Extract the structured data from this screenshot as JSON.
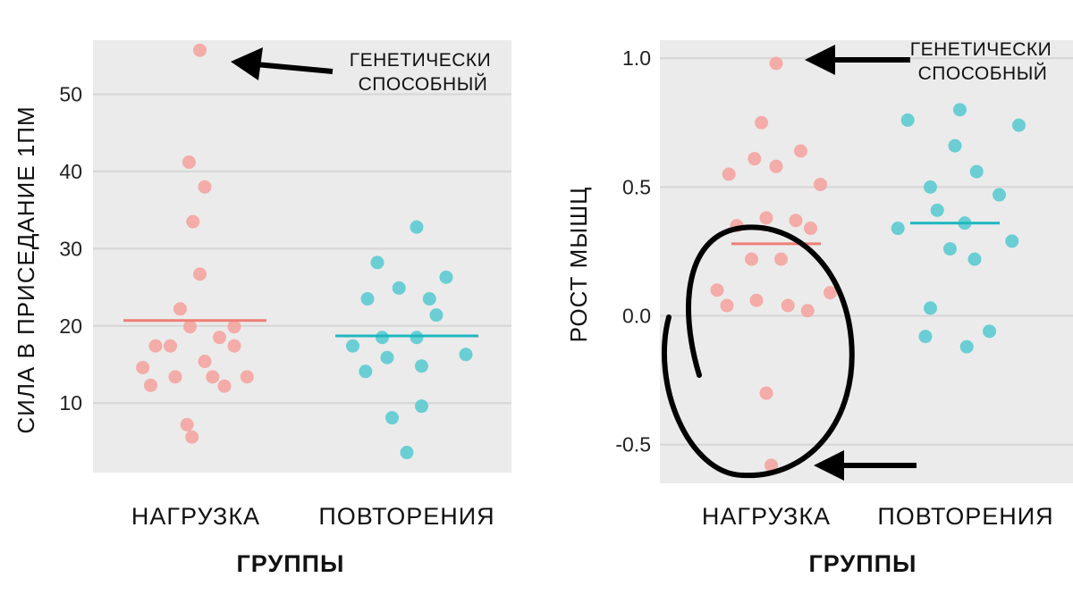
{
  "chart_data": [
    {
      "type": "scatter",
      "ylabel": "СИЛА В ПРИСЕДАНИЕ 1ПМ",
      "xlabel": "ГРУППЫ",
      "ylim": [
        1,
        57
      ],
      "yticks": [
        "10",
        "20",
        "30",
        "40",
        "50"
      ],
      "grid": true,
      "categories": [
        "НАГРУЗКА",
        "ПОВТОРЕНИЯ"
      ],
      "colors": [
        "#f4a5a0",
        "#5ccbd1"
      ],
      "mean_colors": [
        "#ef7f77",
        "#1fb7c0"
      ],
      "series": [
        {
          "name": "НАГРУЗКА",
          "mean": 20.7,
          "points": [
            {
              "x": -0.53,
              "y": 14.6
            },
            {
              "x": -0.45,
              "y": 12.3
            },
            {
              "x": -0.4,
              "y": 17.4
            },
            {
              "x": -0.25,
              "y": 17.4
            },
            {
              "x": -0.2,
              "y": 13.4
            },
            {
              "x": -0.15,
              "y": 22.2
            },
            {
              "x": -0.08,
              "y": 7.2
            },
            {
              "x": -0.03,
              "y": 5.6
            },
            {
              "x": -0.05,
              "y": 19.9
            },
            {
              "x": -0.02,
              "y": 33.5
            },
            {
              "x": 0.05,
              "y": 26.7
            },
            {
              "x": 0.1,
              "y": 38.0
            },
            {
              "x": 0.1,
              "y": 15.4
            },
            {
              "x": 0.18,
              "y": 13.4
            },
            {
              "x": 0.25,
              "y": 18.5
            },
            {
              "x": 0.3,
              "y": 12.2
            },
            {
              "x": 0.4,
              "y": 17.4
            },
            {
              "x": 0.4,
              "y": 19.9
            },
            {
              "x": 0.53,
              "y": 13.4
            },
            {
              "x": -0.06,
              "y": 41.2
            },
            {
              "x": 0.05,
              "y": 55.7
            }
          ]
        },
        {
          "name": "ПОВТОРЕНИЯ",
          "mean": 18.7,
          "points": [
            {
              "x": -0.55,
              "y": 17.4
            },
            {
              "x": -0.42,
              "y": 14.1
            },
            {
              "x": -0.4,
              "y": 23.5
            },
            {
              "x": -0.3,
              "y": 28.2
            },
            {
              "x": -0.25,
              "y": 18.5
            },
            {
              "x": -0.2,
              "y": 15.9
            },
            {
              "x": -0.15,
              "y": 8.1
            },
            {
              "x": -0.08,
              "y": 24.9
            },
            {
              "x": 0.0,
              "y": 3.6
            },
            {
              "x": 0.1,
              "y": 18.5
            },
            {
              "x": 0.15,
              "y": 9.6
            },
            {
              "x": 0.15,
              "y": 14.8
            },
            {
              "x": 0.23,
              "y": 23.5
            },
            {
              "x": 0.3,
              "y": 21.4
            },
            {
              "x": 0.4,
              "y": 26.3
            },
            {
              "x": 0.6,
              "y": 16.3
            },
            {
              "x": 0.1,
              "y": 32.8
            }
          ]
        }
      ],
      "annotations": [
        {
          "text": [
            "ГЕНЕТИЧЕСКИ",
            "СПОСОБНЫЙ"
          ],
          "points_to": {
            "category": "НАГРУЗКА",
            "y": 55.7
          }
        }
      ]
    },
    {
      "type": "scatter",
      "ylabel": "РОСТ МЫШЦ",
      "xlabel": "ГРУППЫ",
      "ylim": [
        -0.65,
        1.07
      ],
      "yticks": [
        "1.0",
        "0.5",
        "0.0",
        "-0.5"
      ],
      "grid": true,
      "categories": [
        "НАГРУЗКА",
        "ПОВТОРЕНИЯ"
      ],
      "colors": [
        "#f4a5a0",
        "#5ccbd1"
      ],
      "mean_colors": [
        "#ef7f77",
        "#1fb7c0"
      ],
      "series": [
        {
          "name": "НАГРУЗКА",
          "mean": 0.28,
          "points": [
            {
              "x": 0.0,
              "y": 0.98
            },
            {
              "x": -0.48,
              "y": 0.55
            },
            {
              "x": -0.15,
              "y": 0.75
            },
            {
              "x": -0.22,
              "y": 0.61
            },
            {
              "x": 0.0,
              "y": 0.58
            },
            {
              "x": 0.25,
              "y": 0.64
            },
            {
              "x": 0.45,
              "y": 0.51
            },
            {
              "x": -0.4,
              "y": 0.35
            },
            {
              "x": -0.1,
              "y": 0.38
            },
            {
              "x": 0.2,
              "y": 0.37
            },
            {
              "x": 0.35,
              "y": 0.34
            },
            {
              "x": -0.25,
              "y": 0.22
            },
            {
              "x": 0.05,
              "y": 0.22
            },
            {
              "x": -0.6,
              "y": 0.1
            },
            {
              "x": -0.5,
              "y": 0.04
            },
            {
              "x": -0.2,
              "y": 0.06
            },
            {
              "x": 0.12,
              "y": 0.04
            },
            {
              "x": 0.32,
              "y": 0.02
            },
            {
              "x": 0.55,
              "y": 0.09
            },
            {
              "x": -0.1,
              "y": -0.3
            },
            {
              "x": -0.05,
              "y": -0.58
            }
          ]
        },
        {
          "name": "ПОВТОРЕНИЯ",
          "mean": 0.36,
          "points": [
            {
              "x": -0.58,
              "y": 0.34
            },
            {
              "x": -0.48,
              "y": 0.76
            },
            {
              "x": -0.25,
              "y": 0.5
            },
            {
              "x": -0.18,
              "y": 0.41
            },
            {
              "x": -0.25,
              "y": 0.03
            },
            {
              "x": -0.3,
              "y": -0.08
            },
            {
              "x": -0.05,
              "y": 0.26
            },
            {
              "x": 0.0,
              "y": 0.66
            },
            {
              "x": 0.05,
              "y": 0.8
            },
            {
              "x": 0.1,
              "y": 0.36
            },
            {
              "x": 0.12,
              "y": -0.12
            },
            {
              "x": 0.2,
              "y": 0.22
            },
            {
              "x": 0.22,
              "y": 0.56
            },
            {
              "x": 0.35,
              "y": -0.06
            },
            {
              "x": 0.45,
              "y": 0.47
            },
            {
              "x": 0.58,
              "y": 0.29
            },
            {
              "x": 0.65,
              "y": 0.74
            }
          ]
        }
      ],
      "annotations": [
        {
          "text": [
            "ГЕНЕТИЧЕСКИ",
            "СПОСОБНЫЙ"
          ],
          "points_to": {
            "category": "НАГРУЗКА",
            "y": 0.98
          }
        },
        {
          "text": [],
          "points_to": {
            "category": "НАГРУЗКА",
            "y": -0.58
          },
          "highlight": "circle-low-responders"
        }
      ]
    }
  ]
}
